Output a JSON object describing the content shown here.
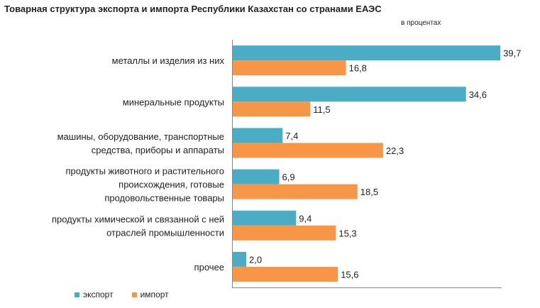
{
  "title": "Товарная структура экспорта и импорта Республики Казахстан со странами ЕАЭС",
  "subtitle": "в процентах",
  "colors": {
    "export": "#4bacc6",
    "import": "#f79646",
    "axis": "#888888"
  },
  "chart_data": {
    "type": "bar",
    "orientation": "horizontal",
    "categories": [
      [
        "металлы и изделия из них"
      ],
      [
        "минеральные продукты"
      ],
      [
        "машины, оборудование, транспортные",
        "средства, приборы и аппараты"
      ],
      [
        "продукты животного и растительного",
        "происхождения, готовые",
        "продовольственные товары"
      ],
      [
        "продукты химической и связанной с ней",
        "отраслей промышленности"
      ],
      [
        "прочее"
      ]
    ],
    "series": [
      {
        "name": "экспорт",
        "values": [
          39.7,
          34.6,
          7.4,
          6.9,
          9.4,
          2.0
        ],
        "labels": [
          "39,7",
          "34,6",
          "7,4",
          "6,9",
          "9,4",
          "2,0"
        ]
      },
      {
        "name": "импорт",
        "values": [
          16.8,
          11.5,
          22.3,
          18.5,
          15.3,
          15.6
        ],
        "labels": [
          "16,8",
          "11,5",
          "22,3",
          "18,5",
          "15,3",
          "15,6"
        ]
      }
    ],
    "xlim": [
      0,
      40
    ],
    "grid": false,
    "legend_position": "bottom-left"
  }
}
